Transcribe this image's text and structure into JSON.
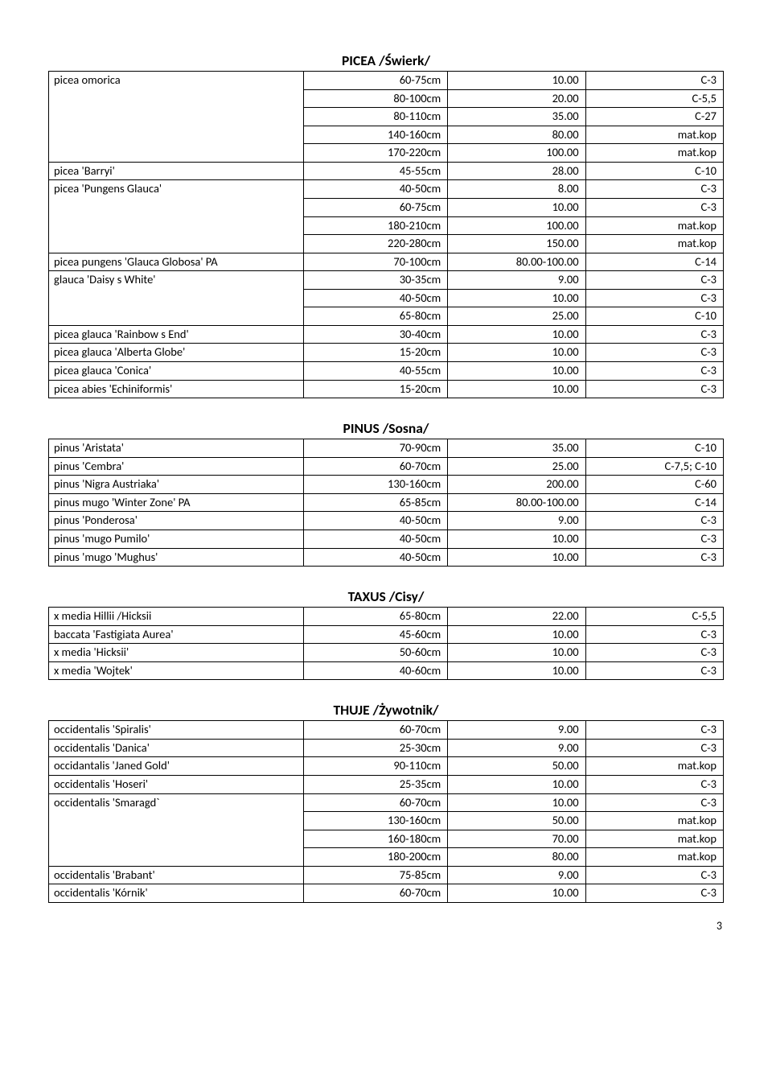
{
  "page_number": "3",
  "sections": [
    {
      "title": "PICEA /Świerk/",
      "groups": [
        {
          "name": "picea omorica",
          "rows": [
            {
              "size": "60-75cm",
              "price": "10.00",
              "code": "C-3"
            },
            {
              "size": "80-100cm",
              "price": "20.00",
              "code": "C-5,5"
            },
            {
              "size": "80-110cm",
              "price": "35.00",
              "code": "C-27"
            },
            {
              "size": "140-160cm",
              "price": "80.00",
              "code": "mat.kop"
            },
            {
              "size": "170-220cm",
              "price": "100.00",
              "code": "mat.kop"
            }
          ]
        },
        {
          "name": "picea 'Barryi'",
          "rows": [
            {
              "size": "45-55cm",
              "price": "28.00",
              "code": "C-10"
            }
          ]
        },
        {
          "name": "picea 'Pungens Glauca'",
          "rows": [
            {
              "size": "40-50cm",
              "price": "8.00",
              "code": "C-3"
            },
            {
              "size": "60-75cm",
              "price": "10.00",
              "code": "C-3"
            },
            {
              "size": "180-210cm",
              "price": "100.00",
              "code": "mat.kop"
            },
            {
              "size": "220-280cm",
              "price": "150.00",
              "code": "mat.kop"
            }
          ]
        },
        {
          "name": "picea pungens 'Glauca Globosa' PA",
          "rows": [
            {
              "size": "70-100cm",
              "price": "80.00-100.00",
              "code": "C-14"
            }
          ]
        },
        {
          "name": "glauca 'Daisy s White'",
          "rows": [
            {
              "size": "30-35cm",
              "price": "9.00",
              "code": "C-3"
            },
            {
              "size": "40-50cm",
              "price": "10.00",
              "code": "C-3"
            },
            {
              "size": "65-80cm",
              "price": "25.00",
              "code": "C-10"
            }
          ]
        },
        {
          "name": "picea glauca 'Rainbow s End'",
          "rows": [
            {
              "size": "30-40cm",
              "price": "10.00",
              "code": "C-3"
            }
          ]
        },
        {
          "name": "picea glauca 'Alberta Globe'",
          "rows": [
            {
              "size": "15-20cm",
              "price": "10.00",
              "code": "C-3"
            }
          ]
        },
        {
          "name": "picea glauca 'Conica'",
          "rows": [
            {
              "size": "40-55cm",
              "price": "10.00",
              "code": "C-3"
            }
          ]
        },
        {
          "name": "picea abies 'Echiniformis'",
          "rows": [
            {
              "size": "15-20cm",
              "price": "10.00",
              "code": "C-3"
            }
          ]
        }
      ]
    },
    {
      "title": "PINUS /Sosna/",
      "groups": [
        {
          "name": "pinus 'Aristata'",
          "rows": [
            {
              "size": "70-90cm",
              "price": "35.00",
              "code": "C-10"
            }
          ]
        },
        {
          "name": "pinus 'Cembra'",
          "rows": [
            {
              "size": "60-70cm",
              "price": "25.00",
              "code": "C-7,5; C-10"
            }
          ]
        },
        {
          "name": "pinus 'Nigra Austriaka'",
          "rows": [
            {
              "size": "130-160cm",
              "price": "200.00",
              "code": "C-60"
            }
          ]
        },
        {
          "name": "pinus mugo 'Winter Zone'         PA",
          "rows": [
            {
              "size": "65-85cm",
              "price": "80.00-100.00",
              "code": "C-14"
            }
          ]
        },
        {
          "name": "pinus  'Ponderosa'",
          "rows": [
            {
              "size": "40-50cm",
              "price": "9.00",
              "code": "C-3"
            }
          ]
        },
        {
          "name": "pinus 'mugo Pumilo'",
          "rows": [
            {
              "size": "40-50cm",
              "price": "10.00",
              "code": "C-3"
            }
          ]
        },
        {
          "name": "pinus 'mugo 'Mughus'",
          "rows": [
            {
              "size": "40-50cm",
              "price": "10.00",
              "code": "C-3"
            }
          ]
        }
      ]
    },
    {
      "title": "TAXUS /Cisy/",
      "groups": [
        {
          "name": "x media Hillii /Hicksii",
          "rows": [
            {
              "size": "65-80cm",
              "price": "22.00",
              "code": "C-5,5"
            }
          ]
        },
        {
          "name": "baccata 'Fastigiata Aurea'",
          "rows": [
            {
              "size": "45-60cm",
              "price": "10.00",
              "code": "C-3"
            }
          ]
        },
        {
          "name": "x media 'Hicksii'",
          "rows": [
            {
              "size": "50-60cm",
              "price": "10.00",
              "code": "C-3"
            }
          ]
        },
        {
          "name": "x media 'Wojtek'",
          "rows": [
            {
              "size": "40-60cm",
              "price": "10.00",
              "code": "C-3"
            }
          ]
        }
      ]
    },
    {
      "title": "THUJE /Żywotnik/",
      "groups": [
        {
          "name": "occidentalis 'Spiralis'",
          "rows": [
            {
              "size": "60-70cm",
              "price": "9.00",
              "code": "C-3"
            }
          ]
        },
        {
          "name": "occidentalis 'Danica'",
          "rows": [
            {
              "size": "25-30cm",
              "price": "9.00",
              "code": "C-3"
            }
          ]
        },
        {
          "name": "occidantalis 'Janed Gold'",
          "rows": [
            {
              "size": "90-110cm",
              "price": "50.00",
              "code": "mat.kop"
            }
          ]
        },
        {
          "name": "occidentalis 'Hoseri'",
          "rows": [
            {
              "size": "25-35cm",
              "price": "10.00",
              "code": "C-3"
            }
          ]
        },
        {
          "name": "occidentalis 'Smaragd`",
          "rows": [
            {
              "size": "60-70cm",
              "price": "10.00",
              "code": "C-3"
            },
            {
              "size": "130-160cm",
              "price": "50.00",
              "code": "mat.kop"
            },
            {
              "size": "160-180cm",
              "price": "70.00",
              "code": "mat.kop"
            },
            {
              "size": "180-200cm",
              "price": "80.00",
              "code": "mat.kop"
            }
          ]
        },
        {
          "name": "occidentalis 'Brabant'",
          "rows": [
            {
              "size": "75-85cm",
              "price": "9.00",
              "code": "C-3"
            }
          ]
        },
        {
          "name": "occidentalis 'Kórnik'",
          "rows": [
            {
              "size": "60-70cm",
              "price": "10.00",
              "code": "C-3"
            }
          ]
        }
      ]
    }
  ]
}
